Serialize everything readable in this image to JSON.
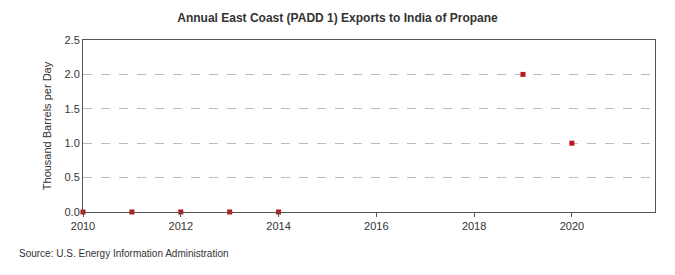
{
  "chart_data": {
    "type": "scatter",
    "title": "Annual East Coast (PADD 1) Exports to India of Propane",
    "y_label": "Thousand Barrels per Day",
    "annotations": [
      "Source: U.S. Energy Information Administration"
    ],
    "x": [
      2010,
      2011,
      2012,
      2013,
      2014,
      2019,
      2020
    ],
    "values": [
      0,
      0,
      0,
      0,
      0,
      2,
      1
    ],
    "color": "#c0141c",
    "marker": "square",
    "xlim": [
      2010,
      2021.7
    ],
    "xticks": [
      2010,
      2012,
      2014,
      2016,
      2018,
      2020
    ],
    "ylim": [
      0,
      2.5
    ],
    "yticks": [
      {
        "value": 0,
        "label": "0.0"
      },
      {
        "value": 0.5,
        "label": "0.5"
      },
      {
        "value": 1,
        "label": "1.0"
      },
      {
        "value": 1.5,
        "label": "1.5"
      },
      {
        "value": 2,
        "label": "2.0"
      },
      {
        "value": 2.5,
        "label": "2.5"
      }
    ],
    "grid": true
  }
}
